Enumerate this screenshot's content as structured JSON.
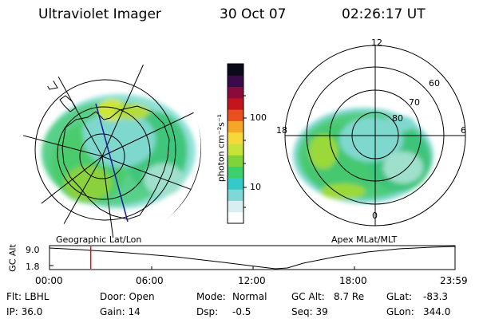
{
  "header": {
    "instrument": "Ultraviolet Imager",
    "date": "30 Oct 07",
    "time": "02:26:17 UT"
  },
  "left_panel": {
    "label": "Geographic Lat/Lon"
  },
  "right_panel": {
    "label": "Apex MLat/MLT",
    "mlt_labels": {
      "top": "12",
      "left": "18",
      "right": "6",
      "bottom": "0"
    },
    "lat_labels": [
      "60",
      "70",
      "80"
    ]
  },
  "colorbar": {
    "unit_label": "photon cm⁻²s⁻¹",
    "tick_100": "100",
    "tick_10": "10",
    "scale": "log",
    "colors": [
      "#ffffff",
      "#d8eef0",
      "#7fd8d8",
      "#36c9c9",
      "#3ccf6a",
      "#7ed43a",
      "#c8e23a",
      "#f6d83a",
      "#f6a626",
      "#e85020",
      "#c4141c",
      "#8a0a3c",
      "#3a0a4a",
      "#0a0a1a"
    ]
  },
  "timeline": {
    "ylabel": "GC Alt",
    "y_ticks": [
      "9.0",
      "1.8"
    ],
    "x_ticks": [
      "00:00",
      "06:00",
      "12:00",
      "18:00",
      "23:59"
    ],
    "marker_time_hours": 2.44
  },
  "info": {
    "filter": "Flt: LBHL",
    "ip": "IP: 36.0",
    "door": "Door: Open",
    "gain": "Gain: 14",
    "mode_label": "Mode:",
    "mode_value": "Normal",
    "dsp_label": "Dsp:",
    "dsp_value": "-0.5",
    "gc_alt_label": "GC Alt:",
    "gc_alt_value": "8.7 Re",
    "seq": "Seq: 39",
    "glat_label": "GLat:",
    "glat_value": "-83.3",
    "glon_label": "GLon:",
    "glon_value": "344.0"
  }
}
